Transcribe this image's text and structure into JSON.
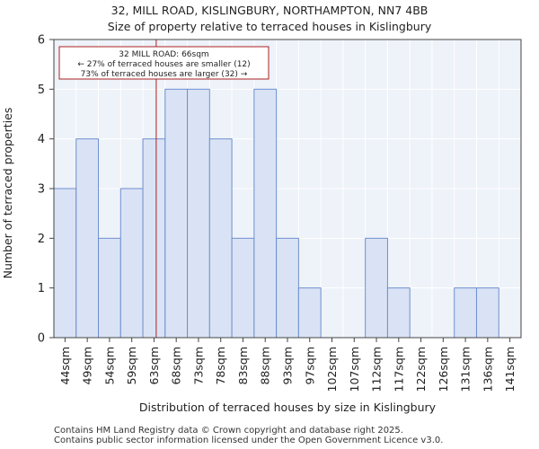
{
  "chart_data": {
    "type": "bar",
    "title": "32, MILL ROAD, KISLINGBURY, NORTHAMPTON, NN7 4BB",
    "subtitle": "Size of property relative to terraced houses in Kislingbury",
    "xlabel": "Distribution of terraced houses by size in Kislingbury",
    "ylabel": "Number of terraced properties",
    "categories": [
      "44sqm",
      "49sqm",
      "54sqm",
      "59sqm",
      "63sqm",
      "68sqm",
      "73sqm",
      "78sqm",
      "83sqm",
      "88sqm",
      "93sqm",
      "97sqm",
      "102sqm",
      "107sqm",
      "112sqm",
      "117sqm",
      "122sqm",
      "126sqm",
      "131sqm",
      "136sqm",
      "141sqm"
    ],
    "values": [
      3,
      4,
      2,
      3,
      4,
      5,
      5,
      4,
      2,
      5,
      2,
      1,
      0,
      0,
      2,
      1,
      0,
      0,
      1,
      1,
      0
    ],
    "ylim": [
      0,
      6
    ],
    "yticks": [
      0,
      1,
      2,
      3,
      4,
      5,
      6
    ],
    "bar_color": "#dae3f5",
    "bar_edge_color": "#6d8fcf",
    "marker": {
      "value_sqm": 66,
      "line_color": "#aa2222",
      "annotation": [
        "32 MILL ROAD: 66sqm",
        "← 27% of terraced houses are smaller (12)",
        "73% of terraced houses are larger (32) →"
      ]
    }
  },
  "footer": {
    "line1": "Contains HM Land Registry data © Crown copyright and database right 2025.",
    "line2": "Contains public sector information licensed under the Open Government Licence v3.0."
  }
}
